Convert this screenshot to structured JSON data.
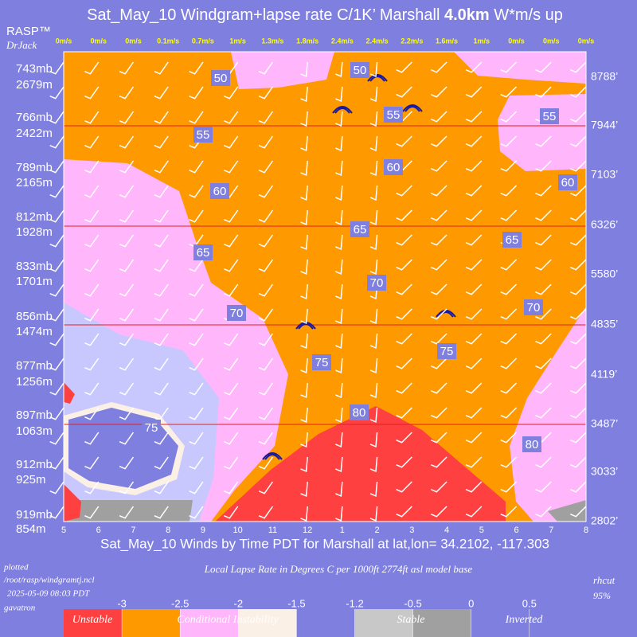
{
  "header": {
    "title_start": "Sat_May_10 Windgram+lapse rate C/1K’  Marshall ",
    "title_bold": "4.0km",
    "title_end": "  W*m/s up",
    "logo": "RASP™",
    "author": "DrJack"
  },
  "top_wind_speeds": [
    "0m/s",
    "0m/s",
    "0m/s",
    "0.1m/s",
    "0.7m/s",
    "1m/s",
    "1.3m/s",
    "1.8m/s",
    "2.4m/s",
    "2.4m/s",
    "2.2m/s",
    "1.6m/s",
    "1m/s",
    "0m/s",
    "0m/s",
    "0m/s"
  ],
  "hours": [
    "5",
    "6",
    "7",
    "8",
    "9",
    "10",
    "11",
    "12",
    "1",
    "2",
    "3",
    "4",
    "5",
    "6",
    "7",
    "8"
  ],
  "left_axis": [
    {
      "mb": "743mb",
      "m": "2679m"
    },
    {
      "mb": "766mb",
      "m": "2422m"
    },
    {
      "mb": "789mb",
      "m": "2165m"
    },
    {
      "mb": "812mb",
      "m": "1928m"
    },
    {
      "mb": "833mb",
      "m": "1701m"
    },
    {
      "mb": "856mb",
      "m": "1474m"
    },
    {
      "mb": "877mb",
      "m": "1256m"
    },
    {
      "mb": "897mb",
      "m": "1063m"
    },
    {
      "mb": "912mb",
      "m": "925m"
    },
    {
      "mb": "919mb",
      "m": "854m"
    }
  ],
  "right_axis": [
    "8788’",
    "7944’",
    "7103’",
    "6326’",
    "5580’",
    "4835’",
    "4119’",
    "3487’",
    "3033’",
    "2802’"
  ],
  "contour_labels": [
    50,
    50,
    55,
    55,
    55,
    60,
    60,
    60,
    65,
    65,
    65,
    70,
    70,
    70,
    75,
    75,
    75,
    80,
    80
  ],
  "x_axis_title": "Sat_May_10 Winds by Time PDT for Marshall at lat,lon= 34.2102, -117.303",
  "footer": {
    "plotted": "plotted",
    "path": "/root/rasp/windgramtj.ncl",
    "timestamp": "2025-05-09 08:03 PDT",
    "host": "gavatron",
    "legend_title": "Local Lapse Rate in Degrees C per 1000ft   2774ft asl model base",
    "rhcut": "rhcut",
    "rhcut_value": "95%"
  },
  "legend": {
    "ticks": [
      -3,
      -2.5,
      -2,
      -1.5,
      -1.2,
      -0.5,
      0,
      0.5
    ],
    "colors": [
      "#ff4040",
      "#ff9900",
      "#ffb6fa",
      "#faf0e6",
      "#7f7fdf",
      "#c8c8c8",
      "#a0a0a0"
    ],
    "labels": [
      "Unstable",
      "Conditional Instability",
      "Stable",
      "Inverted"
    ]
  }
}
